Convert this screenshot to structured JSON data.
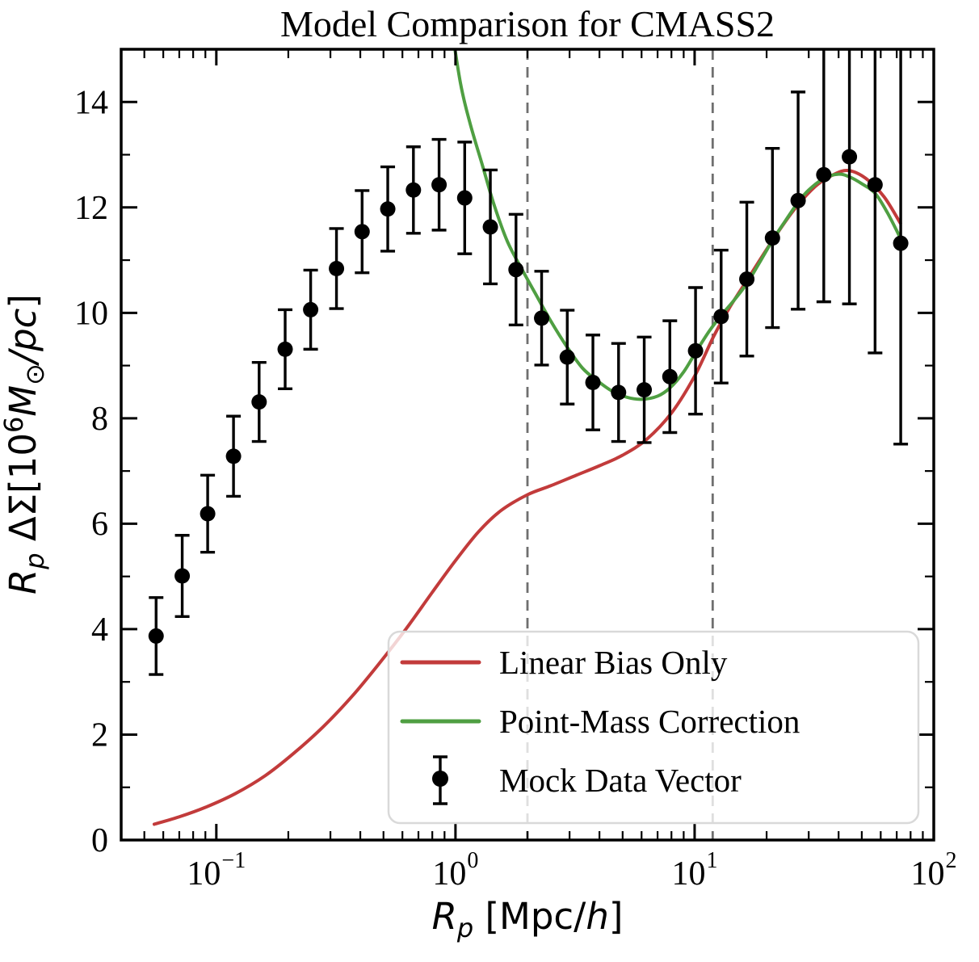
{
  "chart_data": {
    "type": "line+errorbar",
    "title": "Model Comparison for CMASS2",
    "xlabel": "Rp [Mpc/h]",
    "ylabel": "Rp ΔΣ[10^6 M⊙/pc]",
    "xlabel_rich": [
      {
        "t": "R",
        "italic": true,
        "size": 45,
        "dy": 0
      },
      {
        "t": "p",
        "italic": true,
        "size": 32,
        "dy": 10
      },
      {
        "t": " [Mpc/",
        "italic": false,
        "size": 45,
        "dy": -10
      },
      {
        "t": "h",
        "italic": true,
        "size": 45,
        "dy": 0
      },
      {
        "t": "]",
        "italic": false,
        "size": 45,
        "dy": 0
      }
    ],
    "ylabel_rich": [
      {
        "t": "R",
        "italic": true,
        "size": 45,
        "dy": 0
      },
      {
        "t": "p",
        "italic": true,
        "size": 32,
        "dy": 10
      },
      {
        "t": " ΔΣ[10",
        "italic": false,
        "size": 45,
        "dy": -10
      },
      {
        "t": "6",
        "italic": false,
        "size": 32,
        "dy": -16
      },
      {
        "t": "M",
        "italic": true,
        "size": 45,
        "dy": 16
      },
      {
        "t": "⊙",
        "italic": false,
        "size": 32,
        "dy": 10
      },
      {
        "t": "/pc",
        "italic": true,
        "size": 45,
        "dy": -10
      },
      {
        "t": "]",
        "italic": false,
        "size": 45,
        "dy": 0
      }
    ],
    "axes": {
      "xscale": "log",
      "xlim": [
        0.04,
        100
      ],
      "ylim": [
        0,
        15
      ],
      "x_ticks": [
        {
          "v": 0.1,
          "base": "10",
          "exp": "−1"
        },
        {
          "v": 1,
          "base": "10",
          "exp": "0"
        },
        {
          "v": 10,
          "base": "10",
          "exp": "1"
        },
        {
          "v": 100,
          "base": "10",
          "exp": "2"
        }
      ],
      "y_ticks": [
        0,
        2,
        4,
        6,
        8,
        10,
        12,
        14
      ],
      "grid": false
    },
    "vlines": {
      "x": [
        2.0,
        11.9
      ],
      "color": "#6f6f6f",
      "style": "dashed"
    },
    "series": [
      {
        "name": "Linear Bias Only",
        "kind": "line",
        "color": "#c23b3b",
        "x": [
          0.055,
          0.07,
          0.09,
          0.12,
          0.16,
          0.21,
          0.28,
          0.37,
          0.48,
          0.62,
          0.8,
          1.0,
          1.25,
          1.55,
          2.0,
          2.5,
          3.2,
          4.0,
          5.0,
          6.3,
          8.0,
          10.0,
          12.0,
          14.0,
          17.0,
          21.0,
          26.0,
          32.0,
          38.0,
          44.0,
          52.0,
          62.0,
          72.5
        ],
        "y": [
          0.3,
          0.44,
          0.62,
          0.88,
          1.22,
          1.64,
          2.15,
          2.73,
          3.35,
          4.0,
          4.7,
          5.3,
          5.85,
          6.25,
          6.55,
          6.72,
          6.92,
          7.1,
          7.3,
          7.6,
          8.1,
          8.8,
          9.55,
          10.1,
          10.7,
          11.35,
          11.95,
          12.4,
          12.62,
          12.7,
          12.55,
          12.2,
          11.7
        ]
      },
      {
        "name": "Point-Mass Correction",
        "kind": "line",
        "color": "#4f9f42",
        "x": [
          0.95,
          1.05,
          1.15,
          1.3,
          1.45,
          1.65,
          1.9,
          2.15,
          2.5,
          2.93,
          3.4,
          3.9,
          4.5,
          5.2,
          6.0,
          7.0,
          7.9,
          9.0,
          10.1,
          11.5,
          12.9,
          14.5,
          16.5,
          18.5,
          21.2,
          24.0,
          27.1,
          30.0,
          34.7,
          40.0,
          44.4,
          50.0,
          56.8,
          64.0,
          72.5
        ],
        "y": [
          15.6,
          14.35,
          13.6,
          12.78,
          12.05,
          11.35,
          10.82,
          10.38,
          9.85,
          9.35,
          8.95,
          8.72,
          8.52,
          8.4,
          8.36,
          8.42,
          8.58,
          8.88,
          9.25,
          9.65,
          9.95,
          10.22,
          10.55,
          10.92,
          11.38,
          11.75,
          12.1,
          12.33,
          12.55,
          12.63,
          12.58,
          12.45,
          12.27,
          11.9,
          11.42
        ]
      },
      {
        "name": "Mock Data Vector",
        "kind": "errorbar",
        "color": "#000000",
        "x": [
          0.056,
          0.072,
          0.092,
          0.118,
          0.151,
          0.194,
          0.248,
          0.318,
          0.407,
          0.521,
          0.667,
          0.854,
          1.093,
          1.399,
          1.791,
          2.292,
          2.934,
          3.756,
          4.808,
          6.155,
          7.879,
          10.09,
          12.91,
          16.53,
          21.16,
          27.09,
          34.68,
          44.39,
          56.83,
          72.75
        ],
        "y": [
          3.87,
          5.01,
          6.19,
          7.28,
          8.31,
          9.31,
          10.06,
          10.84,
          11.54,
          11.97,
          12.33,
          12.43,
          12.18,
          11.63,
          10.82,
          9.9,
          9.16,
          8.68,
          8.49,
          8.54,
          8.79,
          9.28,
          9.93,
          10.64,
          11.42,
          12.13,
          12.62,
          12.96,
          12.43,
          11.32
        ],
        "yerr": [
          0.73,
          0.77,
          0.73,
          0.76,
          0.75,
          0.75,
          0.75,
          0.76,
          0.78,
          0.8,
          0.82,
          0.86,
          1.06,
          1.08,
          1.05,
          0.89,
          0.89,
          0.9,
          0.93,
          1.0,
          1.06,
          1.2,
          1.26,
          1.46,
          1.7,
          2.06,
          2.41,
          2.79,
          3.19,
          3.81
        ]
      }
    ],
    "legend": {
      "position": "lower right",
      "entries": [
        {
          "label": "Linear Bias Only",
          "swatch": "line",
          "color": "#c23b3b"
        },
        {
          "label": "Point-Mass Correction",
          "swatch": "line",
          "color": "#4f9f42"
        },
        {
          "label": "Mock Data Vector",
          "swatch": "errorbar",
          "color": "#000000"
        }
      ]
    },
    "colors": {
      "spine": "#000000",
      "dashed_line": "#6f6f6f",
      "legend_border": "#d9d9d9",
      "background": "#ffffff"
    }
  }
}
